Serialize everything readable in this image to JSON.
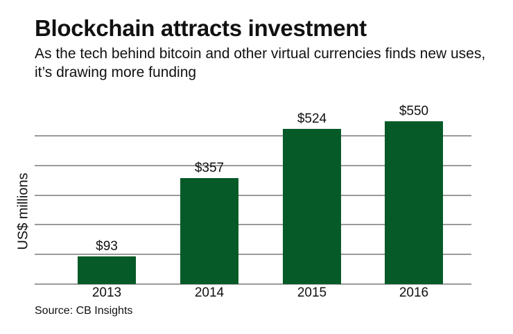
{
  "header": {
    "title": "Blockchain attracts investment",
    "subtitle": "As the tech behind bitcoin and other virtual currencies finds new uses, it’s drawing more funding"
  },
  "footer": {
    "source": "Source: CB Insights"
  },
  "colors": {
    "bar": "#055a28",
    "grid": "#9a9a9a"
  },
  "chart_data": {
    "type": "bar",
    "title": "Blockchain attracts investment",
    "subtitle": "As the tech behind bitcoin and other virtual currencies finds new uses, it’s drawing more funding",
    "xlabel": "",
    "ylabel": "US$ millions",
    "categories": [
      "2013",
      "2014",
      "2015",
      "2016"
    ],
    "values": [
      93,
      357,
      524,
      550
    ],
    "value_labels": [
      "$93",
      "$357",
      "$524",
      "$550"
    ],
    "ylim": [
      0,
      550
    ],
    "gridlines": [
      0,
      100,
      200,
      300,
      400,
      500
    ],
    "grid": true,
    "legend": null
  }
}
